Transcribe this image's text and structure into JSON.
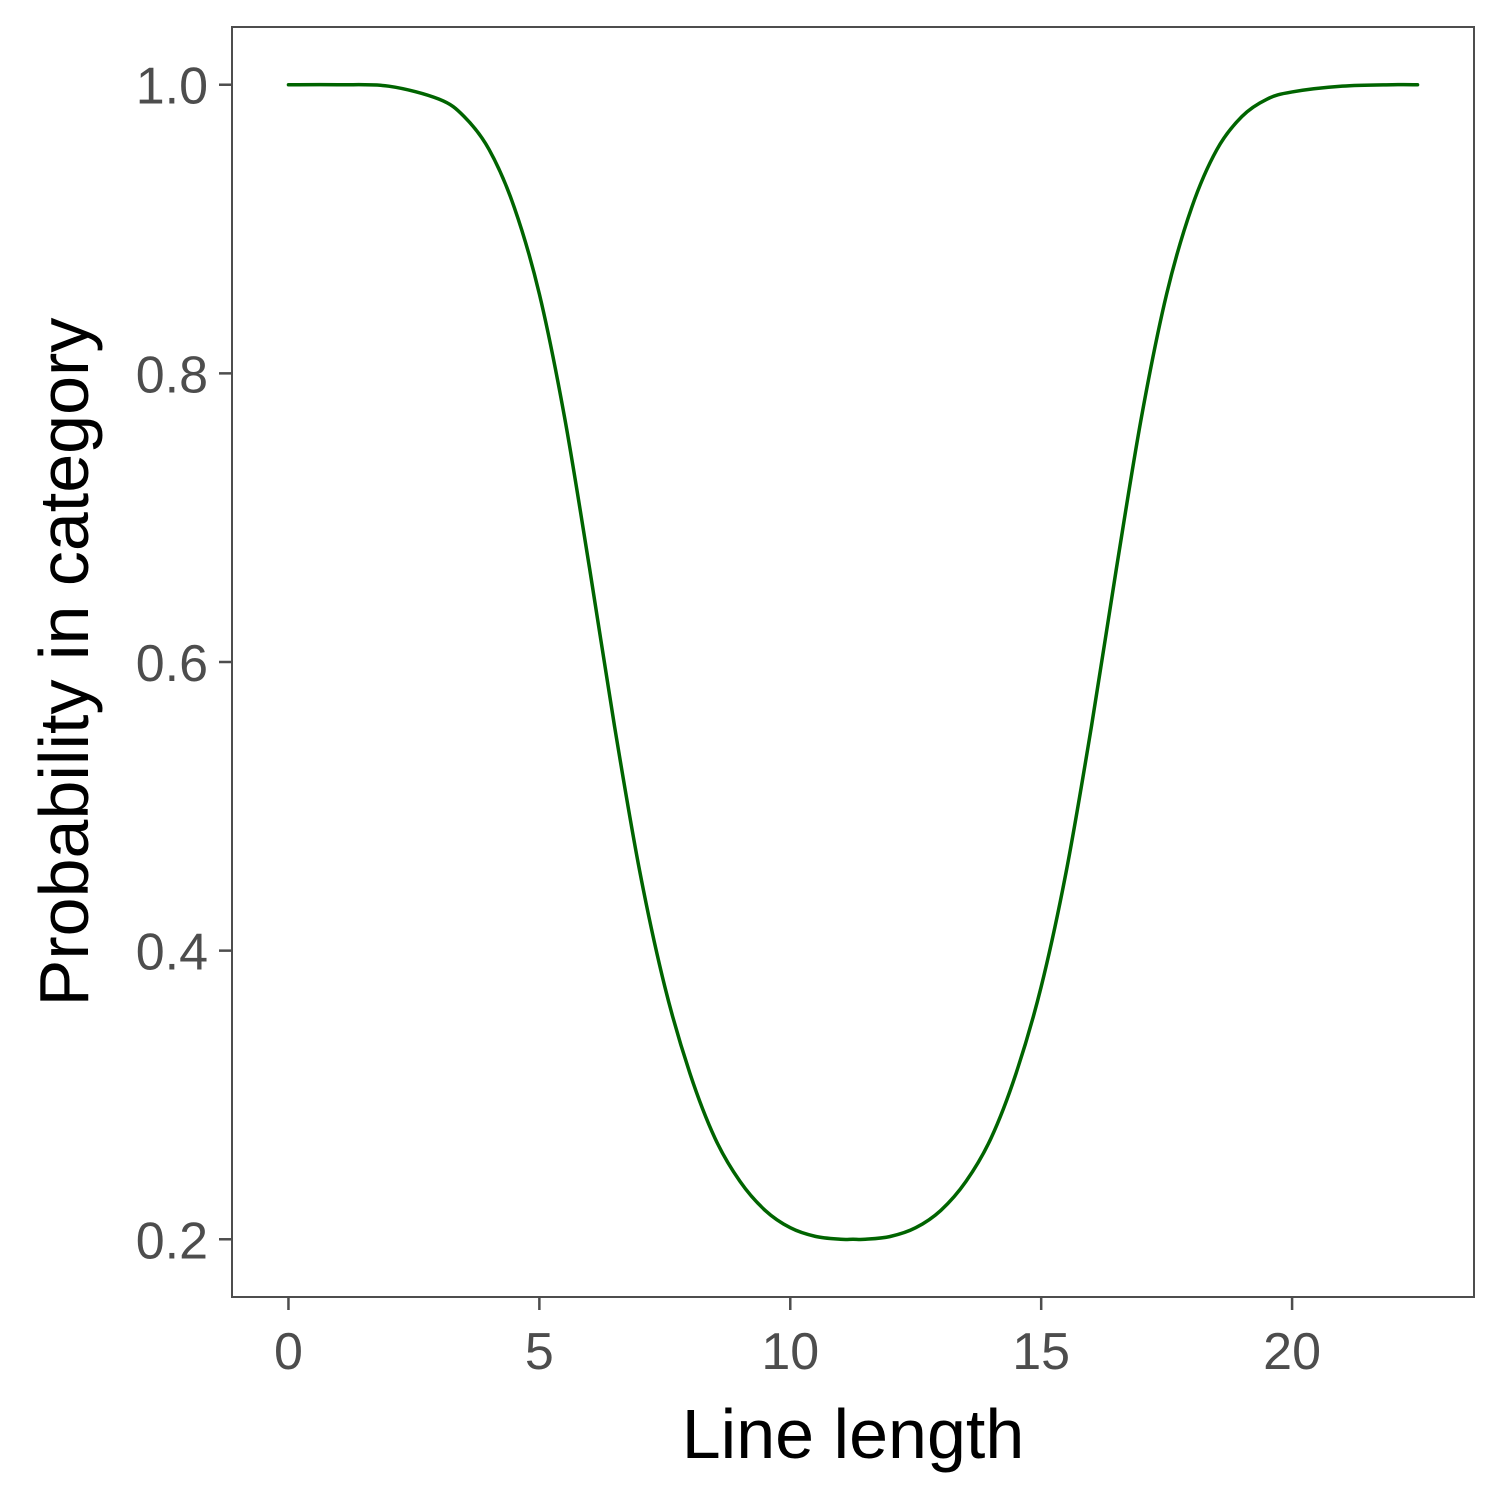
{
  "chart_data": {
    "type": "line",
    "title": "",
    "xlabel": "Line length",
    "ylabel": "Probability in category",
    "xlim": [
      -1.125,
      23.625
    ],
    "ylim": [
      0.16,
      1.04
    ],
    "x_ticks": [
      0,
      5,
      10,
      15,
      20
    ],
    "y_ticks": [
      0.2,
      0.4,
      0.6,
      0.8,
      1.0
    ],
    "x_tick_labels": [
      "0",
      "5",
      "10",
      "15",
      "20"
    ],
    "y_tick_labels": [
      "0.2",
      "0.4",
      "0.6",
      "0.8",
      "1.0"
    ],
    "grid": false,
    "legend": "none",
    "series": [
      {
        "color": "#006400",
        "x": [
          0,
          1,
          2,
          3,
          3.5,
          4,
          4.5,
          5,
          5.5,
          6,
          6.5,
          7,
          7.5,
          8,
          8.5,
          9,
          9.5,
          10,
          10.5,
          11,
          11.25,
          11.5,
          12,
          12.5,
          13,
          13.5,
          14,
          14.5,
          15,
          15.5,
          16,
          16.5,
          17,
          17.5,
          18,
          18.5,
          19,
          19.5,
          20,
          21,
          22,
          22.5
        ],
        "y": [
          1.0,
          1.0,
          0.999,
          0.99,
          0.978,
          0.955,
          0.915,
          0.855,
          0.77,
          0.665,
          0.555,
          0.455,
          0.375,
          0.315,
          0.27,
          0.24,
          0.22,
          0.208,
          0.202,
          0.2,
          0.2,
          0.2,
          0.202,
          0.208,
          0.22,
          0.24,
          0.27,
          0.315,
          0.375,
          0.455,
          0.555,
          0.665,
          0.77,
          0.855,
          0.915,
          0.955,
          0.978,
          0.99,
          0.995,
          0.999,
          1.0,
          1.0
        ]
      }
    ]
  }
}
